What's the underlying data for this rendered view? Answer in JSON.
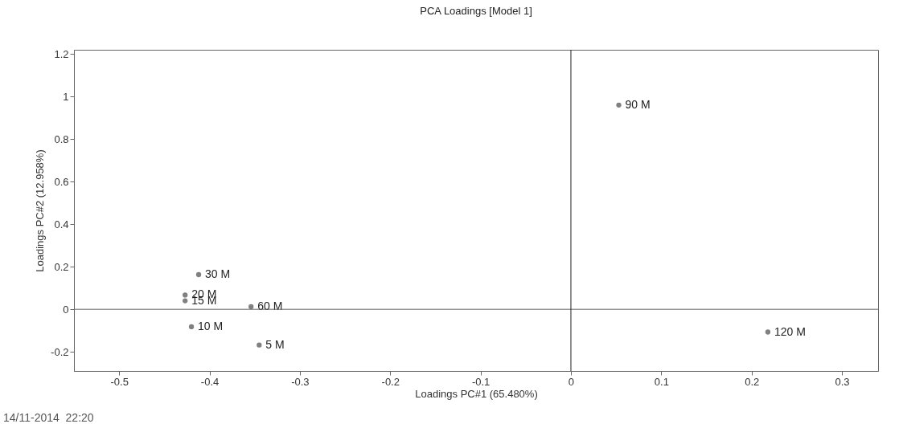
{
  "chart_data": {
    "type": "scatter",
    "title": "PCA Loadings [Model 1]",
    "xlabel": "Loadings PC#1 (65.480%)",
    "ylabel": "Loadings PC#2 (12.958%)",
    "xlim": [
      -0.55,
      0.34
    ],
    "xticks": [
      -0.5,
      -0.4,
      -0.3,
      -0.2,
      -0.1,
      0,
      0.1,
      0.2,
      0.3
    ],
    "ylim": [
      -0.29,
      1.22
    ],
    "yticks": [
      -0.2,
      0,
      0.2,
      0.4,
      0.6,
      0.8,
      1,
      1.2
    ],
    "marker": "circle",
    "series": [
      {
        "name": "90 M",
        "color": "#808080",
        "x": [
          0.053
        ],
        "values": [
          0.96
        ]
      },
      {
        "name": "120 M",
        "color": "#808080",
        "x": [
          0.218
        ],
        "values": [
          -0.107
        ]
      },
      {
        "name": "30 M",
        "color": "#808080",
        "x": [
          -0.412
        ],
        "values": [
          0.163
        ]
      },
      {
        "name": "20 M",
        "color": "#808080",
        "x": [
          -0.427
        ],
        "values": [
          0.067
        ]
      },
      {
        "name": "15 M",
        "color": "#808080",
        "x": [
          -0.427
        ],
        "values": [
          0.04
        ]
      },
      {
        "name": "60 M",
        "color": "#808080",
        "x": [
          -0.354
        ],
        "values": [
          0.012
        ]
      },
      {
        "name": "10 M",
        "color": "#808080",
        "x": [
          -0.42
        ],
        "values": [
          -0.082
        ]
      },
      {
        "name": "5 M",
        "color": "#808080",
        "x": [
          -0.345
        ],
        "values": [
          -0.168
        ]
      }
    ],
    "ref_lines": [
      {
        "axis": "y",
        "value": 0,
        "color": "#666666"
      },
      {
        "axis": "x",
        "value": 0,
        "color": "#222222"
      }
    ],
    "annotations": [
      "14/11-2014  22:20"
    ]
  }
}
